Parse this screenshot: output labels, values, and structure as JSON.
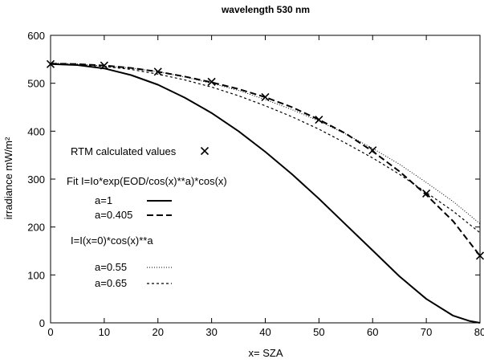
{
  "chart_data": {
    "type": "line",
    "title": "wavelength 530 nm",
    "xlabel": "x= SZA",
    "ylabel": "irradiance mW/m²",
    "xlim": [
      0,
      80
    ],
    "ylim": [
      0,
      600
    ],
    "xticks": [
      "0",
      "10",
      "20",
      "30",
      "40",
      "50",
      "60",
      "70",
      "80"
    ],
    "yticks": [
      "0",
      "100",
      "200",
      "300",
      "400",
      "500",
      "600"
    ],
    "grid": false,
    "legend": {
      "header_fit": "Fit I=Io*exp(EOD/cos(x)**a)*cos(x)",
      "header_power": "I=I(x=0)*cos(x)**a"
    },
    "series": [
      {
        "name": "RTM calculated values",
        "style": "points-x",
        "x": [
          0,
          10,
          20,
          30,
          40,
          50,
          60,
          70,
          80
        ],
        "y": [
          540,
          537,
          524,
          503,
          471,
          424,
          360,
          270,
          140
        ]
      },
      {
        "name": "a=1",
        "style": "solid-thick",
        "x": [
          0,
          5,
          10,
          15,
          20,
          25,
          30,
          35,
          40,
          45,
          50,
          55,
          60,
          65,
          70,
          75,
          78,
          80
        ],
        "y": [
          540,
          538,
          531,
          517,
          497,
          470,
          438,
          400,
          357,
          310,
          259,
          205,
          151,
          97,
          50,
          15,
          4,
          0
        ]
      },
      {
        "name": "a=0.405",
        "style": "dashed-thick",
        "x": [
          0,
          5,
          10,
          15,
          20,
          25,
          30,
          35,
          40,
          45,
          50,
          55,
          60,
          65,
          70,
          75,
          80
        ],
        "y": [
          541,
          540,
          537,
          532,
          524,
          514,
          502,
          488,
          471,
          450,
          424,
          395,
          358,
          316,
          267,
          212,
          140
        ]
      },
      {
        "name": "a=0.55",
        "style": "dotted-fine",
        "x": [
          0,
          5,
          10,
          15,
          20,
          25,
          30,
          35,
          40,
          45,
          50,
          55,
          60,
          65,
          70,
          75,
          80
        ],
        "y": [
          542,
          540,
          536,
          532,
          524,
          513,
          500,
          485,
          466,
          445,
          421,
          394,
          364,
          331,
          293,
          253,
          207
        ]
      },
      {
        "name": "a=0.65",
        "style": "dotted",
        "x": [
          0,
          5,
          10,
          15,
          20,
          25,
          30,
          35,
          40,
          45,
          50,
          55,
          60,
          65,
          70,
          75,
          80
        ],
        "y": [
          541,
          539,
          535,
          529,
          519,
          507,
          492,
          474,
          453,
          430,
          404,
          375,
          344,
          310,
          272,
          233,
          188
        ]
      }
    ]
  }
}
